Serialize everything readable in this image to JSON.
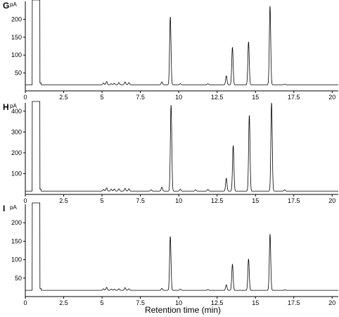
{
  "chart_data": [
    {
      "type": "line",
      "panel": "G",
      "ylabel": "pA",
      "xlim": [
        0,
        20.4
      ],
      "ylim": [
        0,
        250
      ],
      "x_ticks": [
        0,
        2.5,
        5,
        7.5,
        10,
        12.5,
        15,
        17.5,
        20
      ],
      "y_ticks": [
        50,
        100,
        150,
        200
      ],
      "baseline": 17,
      "solvent": {
        "x_start": 0.45,
        "x_end": 0.95
      },
      "peaks": [
        {
          "x": 5.1,
          "y": 22
        },
        {
          "x": 5.3,
          "y": 26
        },
        {
          "x": 5.6,
          "y": 20
        },
        {
          "x": 5.8,
          "y": 21
        },
        {
          "x": 6.1,
          "y": 23
        },
        {
          "x": 6.5,
          "y": 25
        },
        {
          "x": 6.75,
          "y": 23
        },
        {
          "x": 8.9,
          "y": 25
        },
        {
          "x": 9.45,
          "y": 207
        },
        {
          "x": 10.1,
          "y": 20
        },
        {
          "x": 11.9,
          "y": 20
        },
        {
          "x": 13.1,
          "y": 42
        },
        {
          "x": 13.5,
          "y": 122
        },
        {
          "x": 14.55,
          "y": 137
        },
        {
          "x": 15.95,
          "y": 237
        },
        {
          "x": 16.9,
          "y": 19
        }
      ]
    },
    {
      "type": "line",
      "panel": "H",
      "ylabel": "pA",
      "xlim": [
        0,
        20.4
      ],
      "ylim": [
        0,
        440
      ],
      "x_ticks": [
        0,
        2.5,
        5,
        7.5,
        10,
        12.5,
        15,
        17.5,
        20
      ],
      "y_ticks": [
        100,
        200,
        300,
        400
      ],
      "baseline": 16,
      "solvent": {
        "x_start": 0.45,
        "x_end": 0.95
      },
      "peaks": [
        {
          "x": 5.1,
          "y": 24
        },
        {
          "x": 5.3,
          "y": 32
        },
        {
          "x": 5.6,
          "y": 25
        },
        {
          "x": 5.8,
          "y": 26
        },
        {
          "x": 6.1,
          "y": 27
        },
        {
          "x": 6.5,
          "y": 29
        },
        {
          "x": 6.75,
          "y": 27
        },
        {
          "x": 8.2,
          "y": 22
        },
        {
          "x": 8.9,
          "y": 35
        },
        {
          "x": 9.5,
          "y": 430
        },
        {
          "x": 10.1,
          "y": 25
        },
        {
          "x": 11.1,
          "y": 22
        },
        {
          "x": 11.9,
          "y": 24
        },
        {
          "x": 13.1,
          "y": 78
        },
        {
          "x": 13.55,
          "y": 235
        },
        {
          "x": 14.6,
          "y": 380
        },
        {
          "x": 16.05,
          "y": 440
        },
        {
          "x": 16.9,
          "y": 22
        }
      ]
    },
    {
      "type": "line",
      "panel": "I",
      "ylabel": "pA",
      "xlim": [
        0,
        20.4
      ],
      "ylim": [
        0,
        250
      ],
      "x_ticks": [
        0,
        2.5,
        5,
        7.5,
        10,
        12.5,
        15,
        17.5,
        20
      ],
      "y_ticks": [
        50,
        100,
        150,
        200
      ],
      "baseline": 17,
      "solvent": {
        "x_start": 0.45,
        "x_end": 0.95
      },
      "peaks": [
        {
          "x": 5.1,
          "y": 21
        },
        {
          "x": 5.3,
          "y": 25
        },
        {
          "x": 5.6,
          "y": 20
        },
        {
          "x": 5.8,
          "y": 20
        },
        {
          "x": 6.1,
          "y": 21
        },
        {
          "x": 6.5,
          "y": 24
        },
        {
          "x": 6.75,
          "y": 21
        },
        {
          "x": 8.9,
          "y": 22
        },
        {
          "x": 9.45,
          "y": 163
        },
        {
          "x": 10.1,
          "y": 20
        },
        {
          "x": 11.9,
          "y": 19
        },
        {
          "x": 13.1,
          "y": 32
        },
        {
          "x": 13.5,
          "y": 87
        },
        {
          "x": 14.55,
          "y": 102
        },
        {
          "x": 15.95,
          "y": 169
        },
        {
          "x": 16.9,
          "y": 18
        }
      ]
    }
  ],
  "xlabel": "Retention time (min)"
}
